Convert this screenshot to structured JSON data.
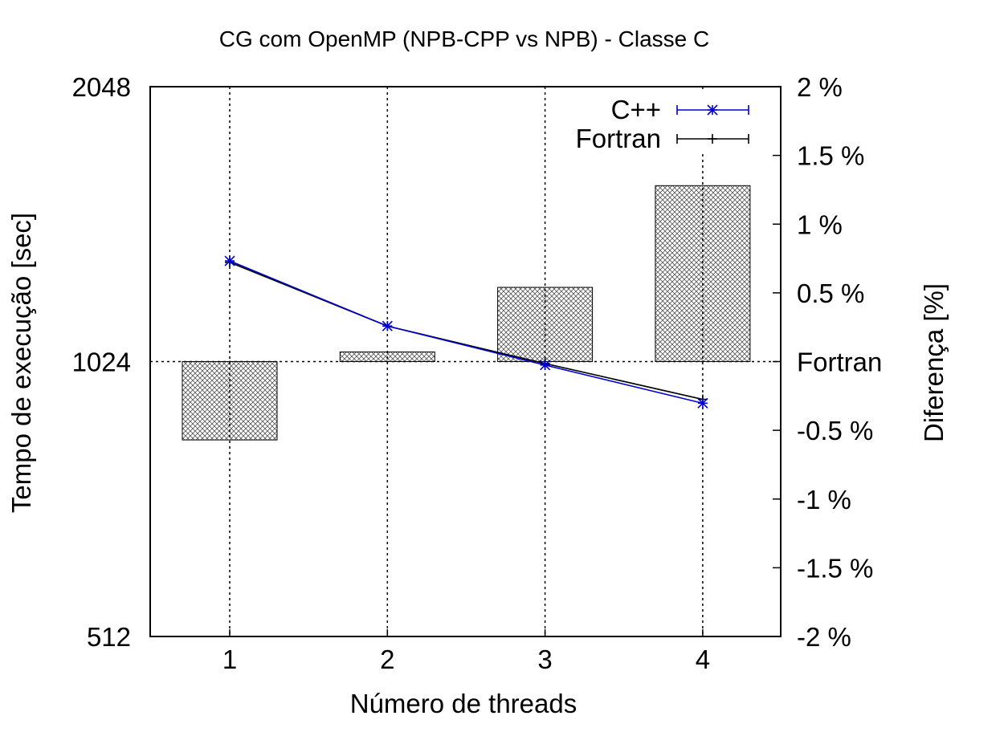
{
  "chart_data": {
    "type": "line",
    "title": "CG com OpenMP (NPB-CPP vs NPB) - Classe C",
    "xlabel": "Número de threads",
    "ylabel": "Tempo de execução [sec]",
    "y2label": "Diferença [%]",
    "categories": [
      1,
      2,
      3,
      4
    ],
    "y_scale": "log2",
    "ylim": [
      512,
      2048
    ],
    "y_ticks": [
      "512",
      "1024",
      "2048"
    ],
    "y2lim": [
      -2,
      2
    ],
    "y2_ticks": [
      "-2 %",
      "-1.5 %",
      "-1 %",
      "-0.5 %",
      "Fortran",
      "0.5 %",
      "1 %",
      "1.5 %",
      "2 %"
    ],
    "series": [
      {
        "name": "C++",
        "color": "#0000cc",
        "marker": "asterisk",
        "values": [
          1320,
          1120,
          1015,
          922
        ]
      },
      {
        "name": "Fortran",
        "color": "#000000",
        "marker": "plus",
        "values": [
          1315,
          1120,
          1019,
          931
        ]
      }
    ],
    "diff_bars": {
      "axis": "y2",
      "fill": "crosshatch",
      "values": [
        -0.57,
        0.07,
        0.54,
        1.28
      ]
    },
    "grid": {
      "vertical": true,
      "horizontal_at": "1024"
    },
    "legend": "top-right"
  }
}
